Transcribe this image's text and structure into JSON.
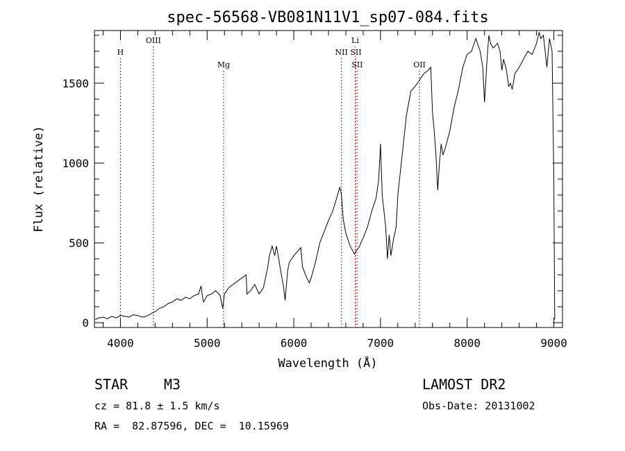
{
  "chart_data": {
    "type": "line",
    "title": "spec-56568-VB081N11V1_sp07-084.fits",
    "xlabel": "Wavelength (Å)",
    "ylabel": "Flux (relative)",
    "xlim": [
      3700,
      9100
    ],
    "ylim": [
      -30,
      1830
    ],
    "x_ticks": [
      4000,
      5000,
      6000,
      7000,
      8000,
      9000
    ],
    "y_ticks": [
      0,
      500,
      1000,
      1500
    ],
    "grid": false,
    "lines": [
      {
        "label": "H",
        "wavelength": 4000,
        "color": "#000000",
        "row": 1
      },
      {
        "label": "OIII",
        "wavelength": 4380,
        "color": "#000000",
        "row": 0
      },
      {
        "label": "Mg",
        "wavelength": 5190,
        "color": "#000000",
        "row": 2
      },
      {
        "label": "NII",
        "wavelength": 6550,
        "color": "#000000",
        "row": 1
      },
      {
        "label": "Li",
        "wavelength": 6708,
        "color": "#cc0000",
        "row": 0
      },
      {
        "label": "SII",
        "wavelength": 6716,
        "color": "#cc0000",
        "row": 1
      },
      {
        "label": "SII",
        "wavelength": 6731,
        "color": "#cc0000",
        "row": 2
      },
      {
        "label": "OII",
        "wavelength": 7450,
        "color": "#000000",
        "row": 2
      }
    ],
    "series": [
      {
        "x": [
          3710,
          3750,
          3800,
          3850,
          3900,
          3950,
          4000,
          4050,
          4100,
          4150,
          4200,
          4250,
          4300,
          4350,
          4400,
          4450,
          4500,
          4550,
          4600,
          4650,
          4700,
          4750,
          4800,
          4850,
          4900,
          4930,
          4950,
          4960,
          5000,
          5050,
          5100,
          5150,
          5180,
          5200,
          5250,
          5300,
          5350,
          5400,
          5450,
          5460,
          5500,
          5550,
          5600,
          5650,
          5700,
          5720,
          5750,
          5780,
          5800,
          5820,
          5850,
          5880,
          5900,
          5930,
          5950,
          6000,
          6050,
          6080,
          6100,
          6150,
          6180,
          6200,
          6250,
          6300,
          6350,
          6400,
          6450,
          6500,
          6530,
          6550,
          6570,
          6600,
          6650,
          6700,
          6720,
          6750,
          6800,
          6850,
          6900,
          6950,
          6980,
          7000,
          7020,
          7030,
          7060,
          7080,
          7100,
          7120,
          7150,
          7180,
          7200,
          7250,
          7300,
          7350,
          7400,
          7450,
          7500,
          7550,
          7580,
          7600,
          7620,
          7640,
          7660,
          7680,
          7700,
          7720,
          7750,
          7800,
          7850,
          7900,
          7950,
          8000,
          8050,
          8100,
          8150,
          8180,
          8200,
          8230,
          8250,
          8270,
          8300,
          8350,
          8380,
          8400,
          8420,
          8450,
          8480,
          8500,
          8520,
          8550,
          8600,
          8650,
          8700,
          8750,
          8800,
          8830,
          8850,
          8880,
          8900,
          8920,
          8950,
          8980,
          9000,
          9010
        ],
        "y": [
          20,
          30,
          35,
          25,
          40,
          30,
          45,
          40,
          35,
          50,
          45,
          35,
          40,
          55,
          70,
          90,
          100,
          120,
          130,
          150,
          140,
          160,
          150,
          170,
          180,
          230,
          150,
          130,
          170,
          180,
          200,
          170,
          90,
          180,
          220,
          240,
          260,
          280,
          300,
          180,
          200,
          240,
          180,
          220,
          350,
          420,
          480,
          420,
          480,
          420,
          320,
          230,
          140,
          330,
          380,
          420,
          450,
          470,
          350,
          280,
          250,
          280,
          380,
          500,
          570,
          640,
          700,
          790,
          850,
          800,
          650,
          560,
          480,
          430,
          450,
          470,
          530,
          600,
          700,
          780,
          900,
          1120,
          800,
          750,
          600,
          400,
          550,
          420,
          520,
          600,
          800,
          1050,
          1300,
          1450,
          1480,
          1520,
          1560,
          1580,
          1600,
          1320,
          1200,
          1050,
          830,
          1000,
          1120,
          1050,
          1100,
          1200,
          1350,
          1460,
          1600,
          1680,
          1700,
          1780,
          1700,
          1600,
          1380,
          1650,
          1800,
          1750,
          1720,
          1750,
          1700,
          1580,
          1650,
          1590,
          1480,
          1500,
          1460,
          1560,
          1600,
          1650,
          1700,
          1680,
          1750,
          1820,
          1780,
          1800,
          1700,
          1600,
          1780,
          1700,
          900,
          20
        ]
      }
    ]
  },
  "footer": {
    "object_type": "STAR",
    "subclass": "M3",
    "survey": "LAMOST DR2",
    "cz": "cz = 81.8 ± 1.5 km/s",
    "obs_date": "Obs-Date: 20131002",
    "coords": "RA =  82.87596, DEC =  10.15969"
  }
}
